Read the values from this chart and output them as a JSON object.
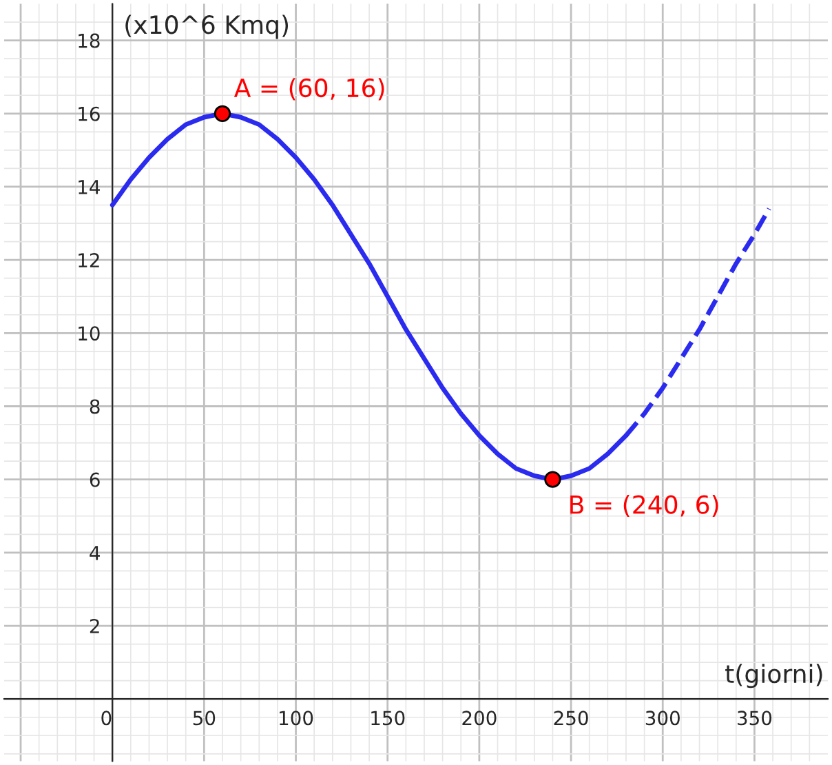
{
  "chart_data": {
    "type": "line",
    "xlabel": "t(giorni)",
    "ylabel": "(x10^6 Kmq)",
    "xlim": [
      -59,
      390
    ],
    "ylim": [
      -1.7,
      19
    ],
    "xticks": [
      0,
      50,
      100,
      150,
      200,
      250,
      300,
      350
    ],
    "yticks": [
      2,
      4,
      6,
      8,
      10,
      12,
      14,
      16,
      18
    ],
    "grid": true,
    "marker": "none",
    "series": [
      {
        "color": "#2b2bf0",
        "line_style": "solid",
        "x": [
          0,
          10,
          20,
          30,
          40,
          50,
          60,
          70,
          80,
          90,
          100,
          110,
          120,
          130,
          140,
          150,
          160,
          170,
          180,
          190,
          200,
          210,
          220,
          230,
          240,
          250,
          260,
          270,
          280
        ],
        "values": [
          13.5,
          14.2,
          14.8,
          15.3,
          15.7,
          15.9,
          16,
          15.9,
          15.7,
          15.3,
          14.8,
          14.2,
          13.5,
          12.7,
          11.9,
          11,
          10.1,
          9.3,
          8.5,
          7.8,
          7.2,
          6.7,
          6.3,
          6.1,
          6,
          6.1,
          6.3,
          6.7,
          7.2
        ]
      },
      {
        "color": "#2b2bf0",
        "line_style": "dashed",
        "x": [
          280,
          290,
          300,
          310,
          320,
          330,
          340,
          350,
          358
        ],
        "values": [
          7.2,
          7.8,
          8.5,
          9.3,
          10.1,
          11,
          11.9,
          12.7,
          13.4
        ]
      },
      {
        "type": "scatter",
        "color": "#ff0000",
        "marker": "circle",
        "x": [
          60,
          240
        ],
        "values": [
          16,
          6
        ]
      }
    ],
    "annotations": [
      {
        "text": "A = (60, 16)",
        "x": 60,
        "y": 16
      },
      {
        "text": "B = (240, 6)",
        "x": 240,
        "y": 6
      }
    ]
  }
}
